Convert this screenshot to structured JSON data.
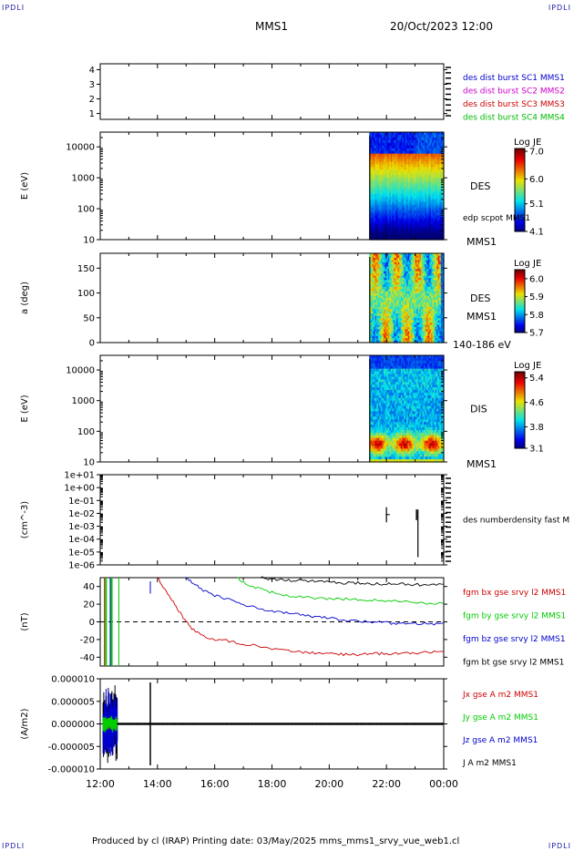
{
  "corner_label": "IPDLI",
  "header": {
    "title": "MMS1",
    "datetime": "20/Oct/2023 12:00"
  },
  "footer": "Produced by cl (IRAP)   Printing date: 03/May/2025   mms_mms1_srvy_vue_web1.cl",
  "chart_data": [
    {
      "id": "panel-1",
      "type": "line",
      "yticks": [
        "1",
        "2",
        "3",
        "4"
      ],
      "ylim": [
        0.6,
        4.4
      ],
      "legend": [
        {
          "label": "des dist burst SC1 MMS1",
          "color": "#0000cc"
        },
        {
          "label": "des dist burst SC2 MMS2",
          "color": "#cc00cc"
        },
        {
          "label": "des dist burst SC3 MMS3",
          "color": "#cc0000"
        },
        {
          "label": "des dist burst SC4 MMS4",
          "color": "#00bb00"
        }
      ]
    },
    {
      "id": "panel-2",
      "type": "heatmap",
      "ylabel": "E (eV)",
      "yscale": "log",
      "ylim": [
        10,
        30000
      ],
      "yticks": [
        "10",
        "100",
        "1000",
        "10000"
      ],
      "data_start_hour": 21.4,
      "data_end_hour": 24,
      "side_label": "DES",
      "side_small": "edp scpot MMS1",
      "bottom_label": "MMS1",
      "colorbar": {
        "title": "Log JE",
        "ticks": [
          "7.0",
          "6.0",
          "5.1",
          "4.1"
        ],
        "min": 4.1,
        "max": 7.1
      }
    },
    {
      "id": "panel-3",
      "type": "heatmap",
      "ylabel": "a (deg)",
      "ylim": [
        0,
        180
      ],
      "yticks": [
        "0",
        "50",
        "100",
        "150"
      ],
      "data_start_hour": 21.4,
      "data_end_hour": 24,
      "side_label": "DES",
      "side_label2": "MMS1",
      "bottom_label": "140-186 eV",
      "colorbar": {
        "title": "Log JE",
        "ticks": [
          "6.0",
          "5.9",
          "5.8",
          "5.7"
        ],
        "min": 5.7,
        "max": 6.05
      }
    },
    {
      "id": "panel-4",
      "type": "heatmap",
      "ylabel": "E (eV)",
      "yscale": "log",
      "ylim": [
        10,
        30000
      ],
      "yticks": [
        "10",
        "100",
        "1000",
        "10000"
      ],
      "data_start_hour": 21.4,
      "data_end_hour": 24,
      "side_label": "DIS",
      "bottom_label": "MMS1",
      "colorbar": {
        "title": "Log JE",
        "ticks": [
          "5.4",
          "4.6",
          "3.8",
          "3.1"
        ],
        "min": 3.1,
        "max": 5.6
      }
    },
    {
      "id": "panel-5",
      "type": "scatter",
      "ylabel": "(cm^-3)",
      "yscale": "log",
      "ylim": [
        1e-06,
        10
      ],
      "yticks": [
        "1e-06",
        "1e-05",
        "1e-04",
        "1e-03",
        "1e-02",
        "1e-01",
        "1e+00",
        "1e+01"
      ],
      "legend": [
        {
          "label": "des numberdensity fast M",
          "color": "#000000"
        }
      ],
      "series": [
        {
          "x": [
            22.0,
            22.0,
            22.05,
            23.1,
            23.1
          ],
          "y": [
            0.005,
            0.03,
            0.01,
            0.02,
            4e-06
          ]
        }
      ]
    },
    {
      "id": "panel-6",
      "type": "line",
      "ylabel": "(nT)",
      "ylim": [
        -50,
        50
      ],
      "yticks": [
        "-40",
        "-20",
        "0",
        "20",
        "40"
      ],
      "zero_line": true,
      "legend": [
        {
          "label": "fgm bx gse srvy l2 MMS1",
          "color": "#cc0000"
        },
        {
          "label": "fgm by gse srvy l2 MMS1",
          "color": "#00cc00"
        },
        {
          "label": "fgm bz gse srvy l2 MMS1",
          "color": "#0000cc"
        },
        {
          "label": "fgm bt gse srvy l2 MMS1",
          "color": "#000000"
        }
      ],
      "series": [
        {
          "name": "fgm bx gse srvy l2 MMS1",
          "color": "#cc0000",
          "x": [
            14.0,
            14.3,
            14.6,
            14.9,
            15.2,
            15.6,
            16.0,
            16.5,
            17.0,
            17.5,
            18.0,
            18.5,
            19.0,
            19.5,
            20.0,
            20.5,
            21.0,
            21.5,
            22.0,
            22.5,
            23.0,
            23.5,
            24.0
          ],
          "y": [
            50,
            35,
            20,
            5,
            -8,
            -16,
            -20,
            -22,
            -25,
            -27,
            -30,
            -33,
            -34,
            -35,
            -36,
            -37,
            -37,
            -36,
            -36,
            -35,
            -35,
            -34,
            -34
          ]
        },
        {
          "name": "fgm by gse srvy l2 MMS1",
          "color": "#00cc00",
          "x": [
            16.8,
            17.0,
            17.5,
            18.0,
            18.5,
            19.0,
            19.5,
            20.0,
            20.5,
            21.0,
            21.5,
            22.0,
            22.5,
            23.0,
            23.5,
            24.0
          ],
          "y": [
            50,
            45,
            38,
            33,
            30,
            28,
            27,
            26,
            26,
            25,
            25,
            24,
            23,
            22,
            21,
            20
          ]
        },
        {
          "name": "fgm bz gse srvy l2 MMS1",
          "color": "#0000cc",
          "x": [
            15.0,
            15.3,
            15.6,
            16.0,
            16.5,
            17.0,
            17.5,
            18.0,
            18.5,
            19.0,
            19.5,
            20.0,
            20.5,
            21.0,
            21.5,
            22.0,
            22.5,
            23.0,
            23.5,
            24.0
          ],
          "y": [
            50,
            43,
            36,
            30,
            25,
            20,
            16,
            12,
            10,
            8,
            6,
            4,
            2,
            1,
            0,
            -1,
            -2,
            -2,
            -2,
            -2
          ]
        },
        {
          "name": "fgm bt gse srvy l2 MMS1",
          "color": "#000000",
          "x": [
            17.6,
            18.0,
            18.5,
            19.0,
            19.5,
            20.0,
            20.5,
            21.0,
            21.5,
            22.0,
            22.5,
            23.0,
            23.5,
            24.0
          ],
          "y": [
            50,
            48,
            47,
            47,
            46,
            45,
            44,
            44,
            43,
            43,
            43,
            42,
            42,
            42
          ]
        }
      ]
    },
    {
      "id": "panel-7",
      "type": "line",
      "ylabel": "(A/m2)",
      "ylim": [
        -1e-05,
        1e-05
      ],
      "yticks": [
        "-0.000010",
        "-0.000005",
        "0.000000",
        "0.000005",
        "0.000010"
      ],
      "xticks": [
        "12:00",
        "14:00",
        "16:00",
        "18:00",
        "20:00",
        "22:00",
        "00:00"
      ],
      "legend": [
        {
          "label": "Jx gse A m2 MMS1",
          "color": "#cc0000"
        },
        {
          "label": "Jy gse A m2 MMS1",
          "color": "#00cc00"
        },
        {
          "label": "Jz gse A m2 MMS1",
          "color": "#0000cc"
        },
        {
          "label": "J A m2 MMS1",
          "color": "#000000"
        }
      ]
    }
  ],
  "colors": {
    "frame": "#000000",
    "label": "#000000"
  }
}
